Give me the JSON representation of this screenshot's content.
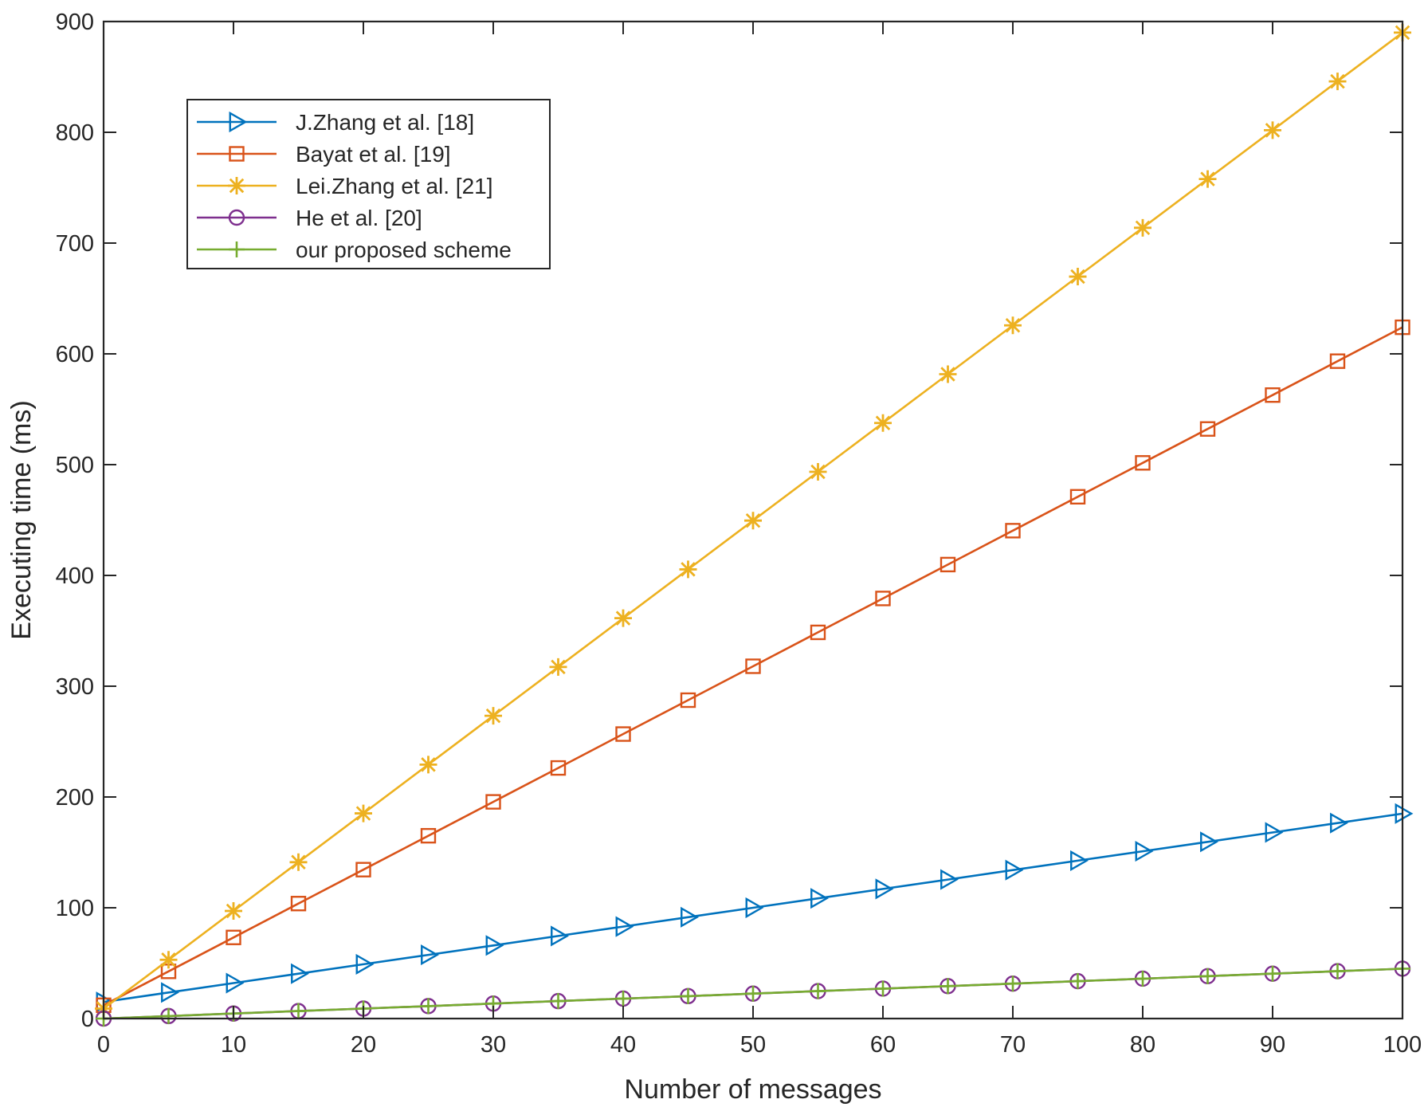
{
  "chart_data": {
    "type": "line",
    "title": "",
    "xlabel": "Number of messages",
    "ylabel": "Executing time (ms)",
    "xlim": [
      0,
      100
    ],
    "ylim": [
      0,
      900
    ],
    "xticks": [
      0,
      10,
      20,
      30,
      40,
      50,
      60,
      70,
      80,
      90,
      100
    ],
    "yticks": [
      0,
      100,
      200,
      300,
      400,
      500,
      600,
      700,
      800,
      900
    ],
    "grid": false,
    "legend_position": "top-left",
    "x": [
      0,
      5,
      10,
      15,
      20,
      25,
      30,
      35,
      40,
      45,
      50,
      55,
      60,
      65,
      70,
      75,
      80,
      85,
      90,
      95,
      100
    ],
    "series": [
      {
        "name": "J.Zhang et al. [18]",
        "color": "#0072BD",
        "marker": "triangle-right",
        "values": [
          15,
          23.5,
          32,
          40.5,
          49,
          57.5,
          66,
          74.5,
          83,
          91.5,
          100,
          108.5,
          117,
          125.5,
          134,
          142.5,
          151,
          159.5,
          168,
          176.5,
          185
        ]
      },
      {
        "name": "Bayat et al. [19]",
        "color": "#D95319",
        "marker": "square",
        "values": [
          12,
          42.6,
          73.2,
          103.8,
          134.4,
          165,
          195.6,
          226.2,
          256.8,
          287.4,
          318,
          348.6,
          379.2,
          409.8,
          440.4,
          471,
          501.6,
          532.2,
          562.8,
          593.4,
          624
        ]
      },
      {
        "name": "Lei.Zhang et al. [21]",
        "color": "#EDB120",
        "marker": "asterisk",
        "values": [
          9,
          53.05,
          97.1,
          141.15,
          185.2,
          229.25,
          273.3,
          317.35,
          361.4,
          405.45,
          449.5,
          493.55,
          537.6,
          581.65,
          625.7,
          669.75,
          713.8,
          757.85,
          801.9,
          845.95,
          890
        ]
      },
      {
        "name": "He et al. [20]",
        "color": "#7E2F8E",
        "marker": "circle",
        "values": [
          0,
          2.25,
          4.5,
          6.75,
          9,
          11.25,
          13.5,
          15.75,
          18,
          20.25,
          22.5,
          24.75,
          27,
          29.25,
          31.5,
          33.75,
          36,
          38.25,
          40.5,
          42.75,
          45
        ]
      },
      {
        "name": "our proposed scheme",
        "color": "#77AC30",
        "marker": "plus",
        "values": [
          0,
          2.25,
          4.5,
          6.75,
          9,
          11.25,
          13.5,
          15.75,
          18,
          20.25,
          22.5,
          24.75,
          27,
          29.25,
          31.5,
          33.75,
          36,
          38.25,
          40.5,
          42.75,
          45
        ]
      }
    ]
  }
}
